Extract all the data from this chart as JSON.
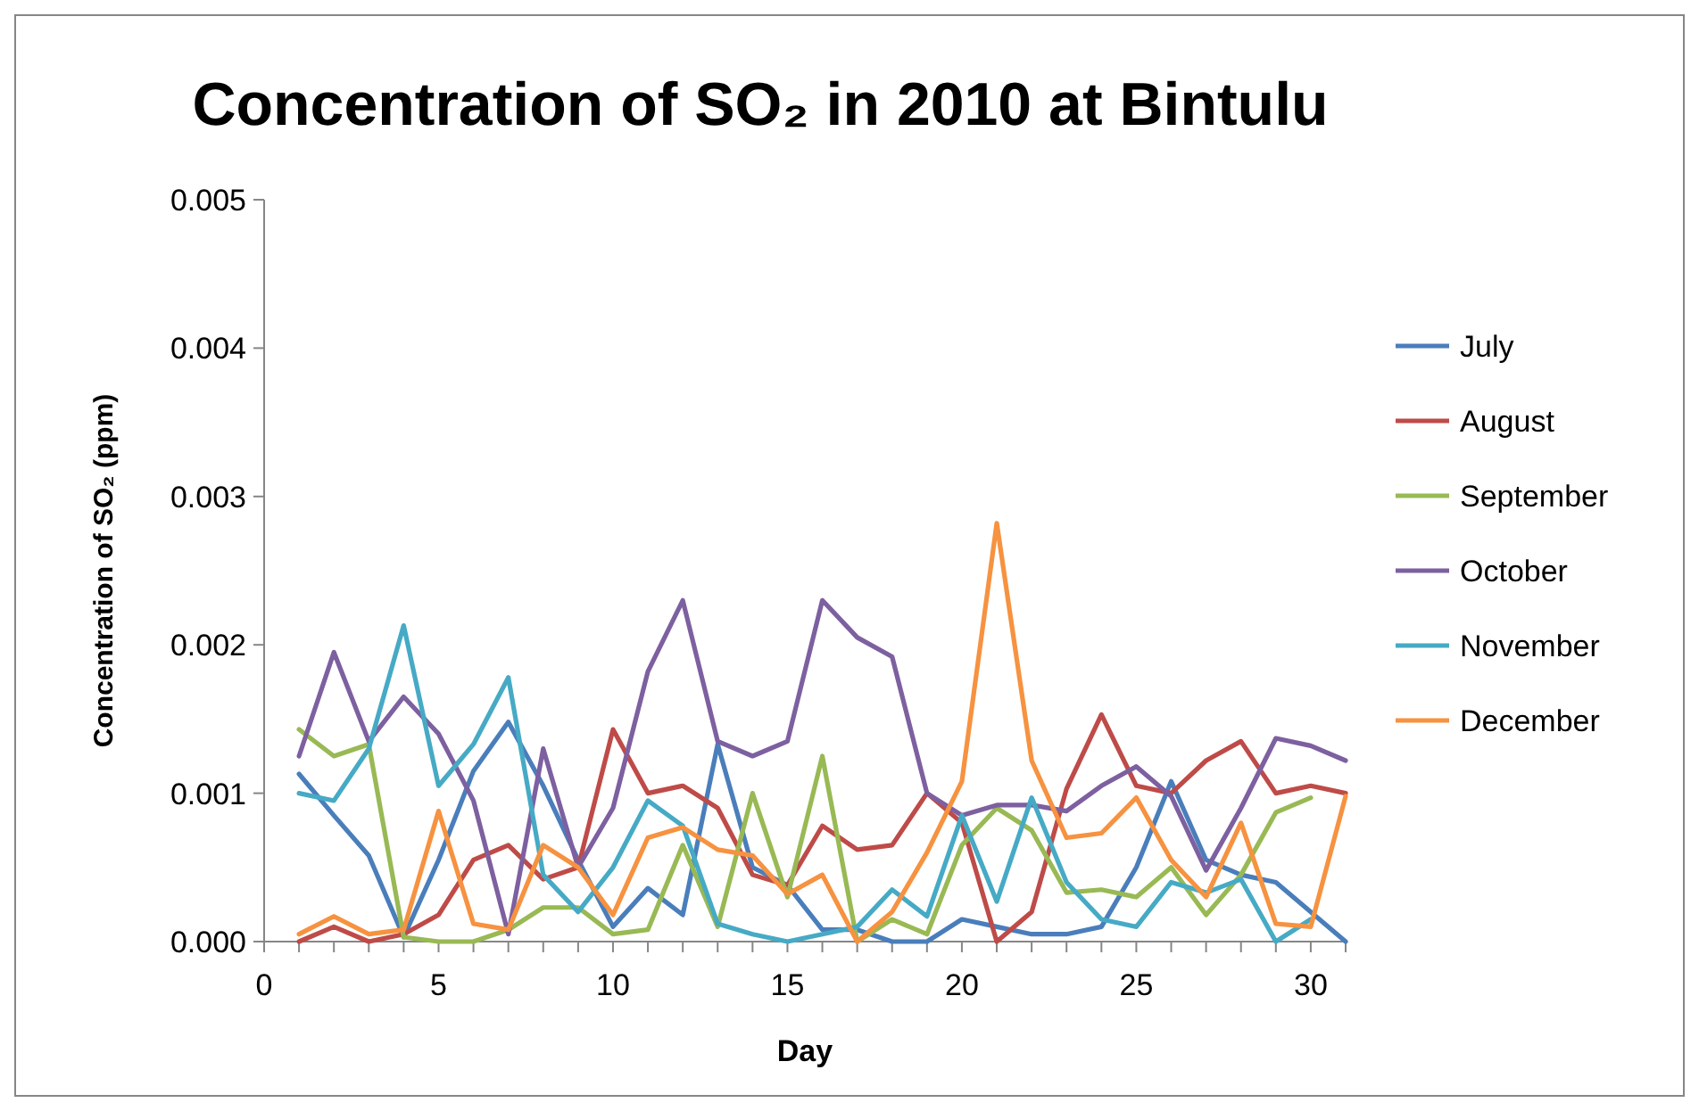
{
  "chart_data": {
    "type": "line",
    "title": "Concentration of SO₂ in 2010 at Bintulu",
    "xlabel": "Day",
    "ylabel": "Concentration of SO₂ (ppm)",
    "x": [
      1,
      2,
      3,
      4,
      5,
      6,
      7,
      8,
      9,
      10,
      11,
      12,
      13,
      14,
      15,
      16,
      17,
      18,
      19,
      20,
      21,
      22,
      23,
      24,
      25,
      26,
      27,
      28,
      29,
      30,
      31
    ],
    "xlim": [
      0,
      31
    ],
    "xticks": [
      0,
      {
        "value": 1,
        "label": null
      },
      {
        "value": 2,
        "label": null
      },
      {
        "value": 3,
        "label": null
      },
      {
        "value": 4,
        "label": null
      },
      5,
      {
        "value": 6,
        "label": null
      },
      {
        "value": 7,
        "label": null
      },
      {
        "value": 8,
        "label": null
      },
      {
        "value": 9,
        "label": null
      },
      10,
      {
        "value": 11,
        "label": null
      },
      {
        "value": 12,
        "label": null
      },
      {
        "value": 13,
        "label": null
      },
      {
        "value": 14,
        "label": null
      },
      15,
      {
        "value": 16,
        "label": null
      },
      {
        "value": 17,
        "label": null
      },
      {
        "value": 18,
        "label": null
      },
      {
        "value": 19,
        "label": null
      },
      20,
      {
        "value": 21,
        "label": null
      },
      {
        "value": 22,
        "label": null
      },
      {
        "value": 23,
        "label": null
      },
      {
        "value": 24,
        "label": null
      },
      25,
      {
        "value": 26,
        "label": null
      },
      {
        "value": 27,
        "label": null
      },
      {
        "value": 28,
        "label": null
      },
      {
        "value": 29,
        "label": null
      },
      30,
      {
        "value": 31,
        "label": null
      }
    ],
    "ylim": [
      0,
      0.005
    ],
    "yticks": [
      {
        "value": 0,
        "label": "0.000"
      },
      {
        "value": 0.001,
        "label": "0.001"
      },
      {
        "value": 0.002,
        "label": "0.002"
      },
      {
        "value": 0.003,
        "label": "0.003"
      },
      {
        "value": 0.004,
        "label": "0.004"
      },
      {
        "value": 0.005,
        "label": "0.005"
      }
    ],
    "grid": false,
    "legend": "right",
    "marker": "none",
    "line_style": "solid",
    "series": [
      {
        "name": "July",
        "color": "#4a7ebb",
        "values": [
          0.00113,
          0.00085,
          0.00058,
          3e-05,
          0.00055,
          0.00115,
          0.00148,
          0.00105,
          0.00055,
          0.0001,
          0.00036,
          0.00018,
          0.00133,
          0.0005,
          0.00038,
          8e-05,
          8e-05,
          0,
          0,
          0.00015,
          0.0001,
          5e-05,
          5e-05,
          0.0001,
          0.0005,
          0.00108,
          0.00055,
          0.00045,
          0.0004,
          0.0002,
          0
        ]
      },
      {
        "name": "August",
        "color": "#be4b48",
        "values": [
          0,
          0.0001,
          0,
          5e-05,
          0.00018,
          0.00055,
          0.00065,
          0.00042,
          0.0005,
          0.00143,
          0.001,
          0.00105,
          0.0009,
          0.00045,
          0.00038,
          0.00078,
          0.00062,
          0.00065,
          0.001,
          0.0008,
          0,
          0.0002,
          0.00103,
          0.00153,
          0.00105,
          0.001,
          0.00122,
          0.00135,
          0.001,
          0.00105,
          0.001
        ]
      },
      {
        "name": "September",
        "color": "#98b954",
        "values": [
          0.00143,
          0.00125,
          0.00133,
          3e-05,
          0,
          0,
          8e-05,
          0.00023,
          0.00023,
          5e-05,
          8e-05,
          0.00065,
          0.0001,
          0.001,
          0.0003,
          0.00125,
          0,
          0.00015,
          5e-05,
          0.00065,
          0.0009,
          0.00075,
          0.00033,
          0.00035,
          0.0003,
          0.0005,
          0.00018,
          0.00045,
          0.00087,
          0.00097,
          null
        ]
      },
      {
        "name": "October",
        "color": "#7d60a0",
        "values": [
          0.00125,
          0.00195,
          0.00135,
          0.00165,
          0.0014,
          0.00095,
          5e-05,
          0.0013,
          0.0005,
          0.0009,
          0.00182,
          0.0023,
          0.00135,
          0.00125,
          0.00135,
          0.0023,
          0.00205,
          0.00192,
          0.001,
          0.00085,
          0.00092,
          0.00092,
          0.00088,
          0.00105,
          0.00118,
          0.00098,
          0.00048,
          0.0009,
          0.00137,
          0.00132,
          0.00122
        ]
      },
      {
        "name": "November",
        "color": "#46aac5",
        "values": [
          0.001,
          0.00095,
          0.0013,
          0.00213,
          0.00105,
          0.00133,
          0.00178,
          0.00045,
          0.0002,
          0.0005,
          0.00095,
          0.00078,
          0.00012,
          5e-05,
          0,
          5e-05,
          0.0001,
          0.00035,
          0.00017,
          0.00085,
          0.00027,
          0.00097,
          0.0004,
          0.00015,
          0.0001,
          0.0004,
          0.00033,
          0.00042,
          0,
          0.00015,
          null
        ]
      },
      {
        "name": "December",
        "color": "#f69240",
        "values": [
          5e-05,
          0.00017,
          5e-05,
          8e-05,
          0.00088,
          0.00012,
          8e-05,
          0.00065,
          0.0005,
          0.00018,
          0.0007,
          0.00077,
          0.00062,
          0.00058,
          0.00032,
          0.00045,
          0,
          0.0002,
          0.0006,
          0.00108,
          0.00282,
          0.00122,
          0.0007,
          0.00073,
          0.00097,
          0.00055,
          0.0003,
          0.0008,
          0.00012,
          0.0001,
          0.00098
        ]
      }
    ]
  }
}
